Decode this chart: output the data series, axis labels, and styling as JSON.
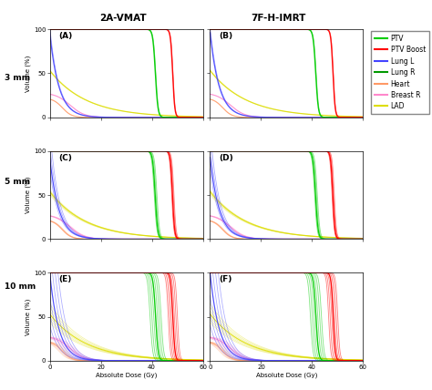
{
  "title_left": "2A-VMAT",
  "title_right": "7F-H-IMRT",
  "row_labels": [
    "3 mm",
    "5 mm",
    "10 mm"
  ],
  "panel_labels": [
    [
      "(A)",
      "(B)"
    ],
    [
      "(C)",
      "(D)"
    ],
    [
      "(E)",
      "(F)"
    ]
  ],
  "xlabel": "Absolute Dose (Gy)",
  "ylabel": "Volume (%)",
  "xlim": [
    0,
    60
  ],
  "ylim": [
    0,
    100
  ],
  "xticks": [
    0,
    20,
    40,
    60
  ],
  "yticks": [
    0,
    50,
    100
  ],
  "bg_color": "#ffffff",
  "structure_colors": {
    "PTV_main": "#00cc00",
    "PTV_boost": "#ff0000",
    "lung_l": "#4444ff",
    "heart": "#ff9966",
    "breast_r": "#ff88cc",
    "lad": "#dddd00"
  },
  "legend_colors": {
    "PTV": "#00cc00",
    "PTV Boost": "#ff0000",
    "Lung L": "#4444ff",
    "Lung R": "#009900",
    "Heart": "#ff9966",
    "Breast R": "#ff88cc",
    "LAD": "#dddd00"
  },
  "n_variants": [
    2,
    4,
    7
  ],
  "variant_shift": [
    0.3,
    0.6,
    1.2
  ]
}
